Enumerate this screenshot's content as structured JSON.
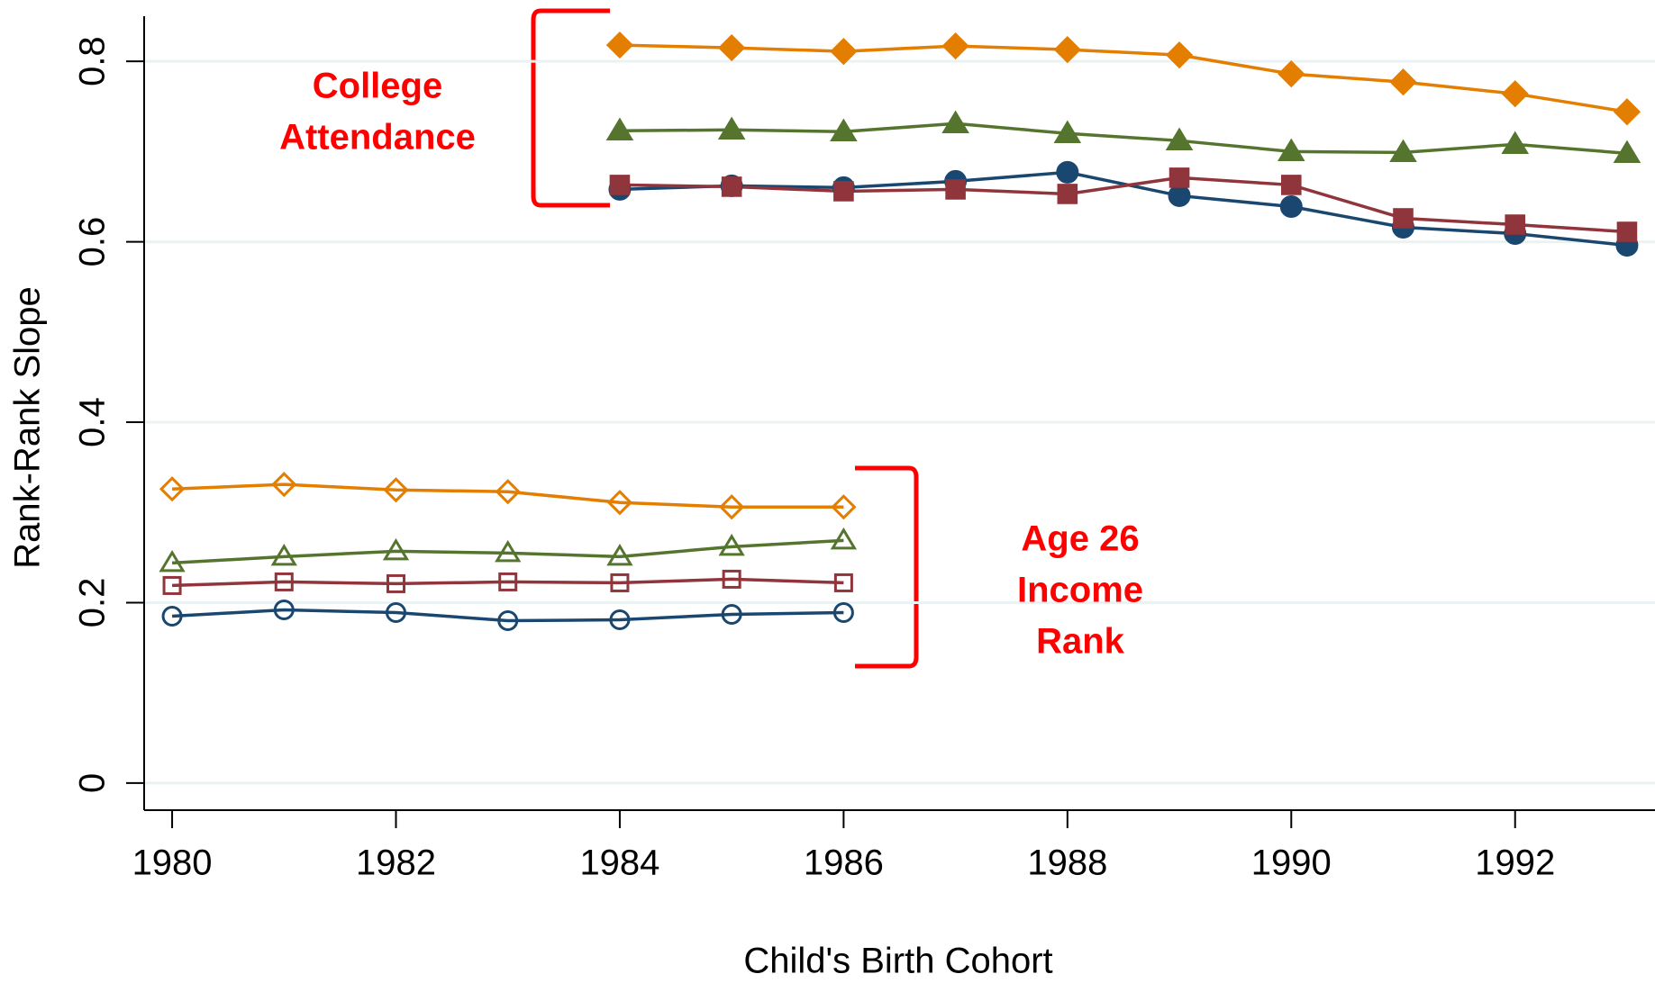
{
  "chart_data": {
    "type": "line",
    "x": [
      1980,
      1981,
      1982,
      1983,
      1984,
      1985,
      1986,
      1987,
      1988,
      1989,
      1990,
      1991,
      1992,
      1993
    ],
    "xlim": [
      1979.75,
      1993.25
    ],
    "xticks": [
      1980,
      1982,
      1984,
      1986,
      1988,
      1990,
      1992
    ],
    "ylim": [
      -0.03,
      0.85
    ],
    "yticks": [
      0,
      0.2,
      0.4,
      0.6,
      0.8
    ],
    "xlabel": "Child's Birth Cohort",
    "ylabel": "Rank-Rank Slope",
    "grid": true,
    "annotations": [
      {
        "lines": [
          "College",
          "Attendance"
        ],
        "color": "#ff0000"
      },
      {
        "lines": [
          "Age 26",
          "Income",
          "Rank"
        ],
        "color": "#ff0000"
      }
    ],
    "series": [
      {
        "color": "#e37e00",
        "marker": "diamond",
        "filled": true,
        "values": [
          null,
          null,
          null,
          null,
          0.818,
          0.815,
          0.811,
          0.817,
          0.813,
          0.807,
          0.786,
          0.777,
          0.764,
          0.744
        ]
      },
      {
        "color": "#55752f",
        "marker": "triangle",
        "filled": true,
        "values": [
          null,
          null,
          null,
          null,
          0.723,
          0.724,
          0.722,
          0.731,
          0.72,
          0.712,
          0.7,
          0.699,
          0.708,
          0.698
        ]
      },
      {
        "color": "#1a476f",
        "marker": "circle",
        "filled": true,
        "values": [
          null,
          null,
          null,
          null,
          0.658,
          0.662,
          0.66,
          0.667,
          0.677,
          0.651,
          0.639,
          0.616,
          0.609,
          0.596
        ]
      },
      {
        "color": "#90353b",
        "marker": "square",
        "filled": true,
        "values": [
          null,
          null,
          null,
          null,
          0.663,
          0.661,
          0.656,
          0.658,
          0.653,
          0.671,
          0.663,
          0.626,
          0.619,
          0.611
        ]
      },
      {
        "color": "#e37e00",
        "marker": "diamond",
        "filled": false,
        "values": [
          0.326,
          0.331,
          0.325,
          0.323,
          0.311,
          0.306,
          0.306,
          null,
          null,
          null,
          null,
          null,
          null,
          null
        ]
      },
      {
        "color": "#55752f",
        "marker": "triangle",
        "filled": false,
        "values": [
          0.244,
          0.251,
          0.257,
          0.255,
          0.251,
          0.262,
          0.269,
          null,
          null,
          null,
          null,
          null,
          null,
          null
        ]
      },
      {
        "color": "#90353b",
        "marker": "square",
        "filled": false,
        "values": [
          0.219,
          0.223,
          0.221,
          0.223,
          0.222,
          0.226,
          0.222,
          null,
          null,
          null,
          null,
          null,
          null,
          null
        ]
      },
      {
        "color": "#1a476f",
        "marker": "circle",
        "filled": false,
        "values": [
          0.185,
          0.192,
          0.189,
          0.18,
          0.181,
          0.187,
          0.189,
          null,
          null,
          null,
          null,
          null,
          null,
          null
        ]
      }
    ]
  }
}
